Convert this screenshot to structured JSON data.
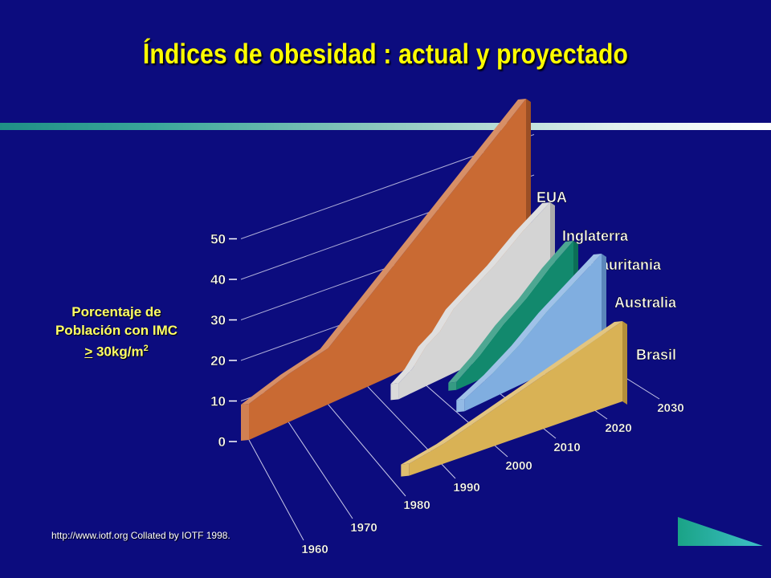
{
  "slide": {
    "title": "Índices de obesidad : actual y proyectado",
    "source": "http://www.iotf.org Collated by IOTF 1998."
  },
  "axis": {
    "ylabel_line1": "Porcentaje de",
    "ylabel_line2": "Población con IMC",
    "ylabel_ge": ">",
    "ylabel_value": " 30kg/m",
    "ylabel_exp": "2"
  },
  "chart_data": {
    "type": "area",
    "title": "Índices de obesidad : actual y proyectado",
    "xlabel": "",
    "ylabel": "Porcentaje de Población con IMC > 30kg/m2",
    "x": [
      1960,
      1970,
      1980,
      1990,
      2000,
      2010,
      2020,
      2030
    ],
    "y_ticks": [
      0,
      10,
      20,
      30,
      40,
      50
    ],
    "ylim": [
      0,
      50
    ],
    "series": [
      {
        "name": "EUA",
        "color": "#c96a33",
        "points": [
          [
            1960,
            9
          ],
          [
            1970,
            12
          ],
          [
            1980,
            14
          ],
          [
            1990,
            22
          ],
          [
            2000,
            30
          ],
          [
            2010,
            38
          ],
          [
            2020,
            46
          ],
          [
            2030,
            54
          ]
        ]
      },
      {
        "name": "Inglaterra",
        "color": "#d4d4d4",
        "points": [
          [
            1975,
            4
          ],
          [
            1980,
            6
          ],
          [
            1985,
            10
          ],
          [
            1990,
            12
          ],
          [
            1995,
            16
          ],
          [
            2000,
            18
          ],
          [
            2010,
            22
          ],
          [
            2020,
            27
          ],
          [
            2030,
            31
          ]
        ]
      },
      {
        "name": "Mauritania",
        "color": "#12896d",
        "points": [
          [
            1980,
            2
          ],
          [
            1990,
            6
          ],
          [
            2000,
            11
          ],
          [
            2010,
            15
          ],
          [
            2020,
            20
          ],
          [
            2030,
            24
          ]
        ]
      },
      {
        "name": "Australia",
        "color": "#80aee0",
        "points": [
          [
            1980,
            3
          ],
          [
            1990,
            6
          ],
          [
            2000,
            10
          ],
          [
            2010,
            15
          ],
          [
            2020,
            19
          ],
          [
            2030,
            23
          ]
        ]
      },
      {
        "name": "Brasil",
        "color": "#d9b255",
        "points": [
          [
            1970,
            3
          ],
          [
            1980,
            5
          ],
          [
            1990,
            8
          ],
          [
            2000,
            11
          ],
          [
            2010,
            14
          ],
          [
            2020,
            17
          ],
          [
            2030,
            20
          ]
        ]
      }
    ],
    "grid": true,
    "legend": "labels at series ends"
  }
}
